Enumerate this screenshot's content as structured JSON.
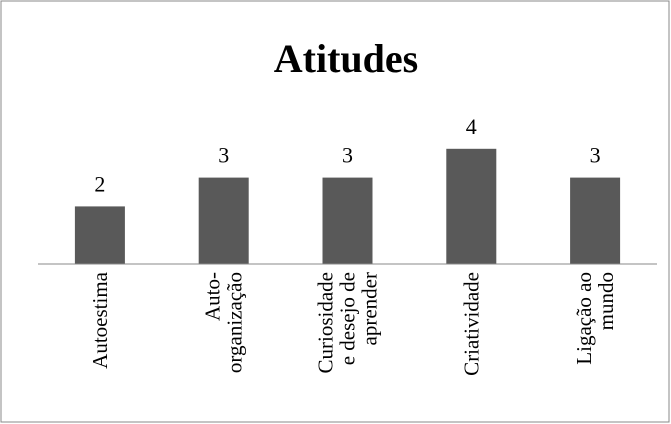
{
  "chart_data": {
    "type": "bar",
    "title": "Atitudes",
    "categories": [
      "Autoestima",
      "Auto-organização",
      "Curiosidade e desejo de aprender",
      "Criatividade",
      "Ligação ao mundo"
    ],
    "values": [
      2,
      3,
      3,
      4,
      3
    ],
    "color": "#595959",
    "ylim": [
      0,
      5
    ]
  }
}
